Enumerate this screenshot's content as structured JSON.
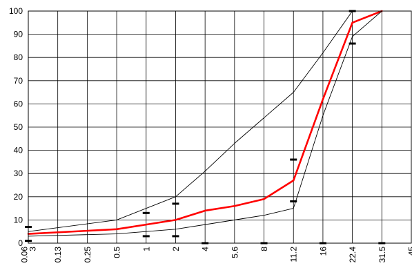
{
  "chart_data": {
    "type": "line",
    "title": "",
    "xlabel": "",
    "ylabel": "",
    "x_scale": "categorical",
    "categories": [
      "0.063",
      "0.13",
      "0.25",
      "0.5",
      "1",
      "2",
      "4",
      "5.6",
      "8",
      "11.2",
      "16",
      "22.4",
      "31.5",
      "45"
    ],
    "x_tick_labels": [
      "0.06\n3",
      "0.13",
      "0.25",
      "0.5",
      "1",
      "2",
      "4",
      "5.6",
      "8",
      "11.2",
      "16",
      "22.4",
      "31.5",
      "45"
    ],
    "ylim": [
      0,
      100
    ],
    "y_ticks": [
      0,
      10,
      20,
      30,
      40,
      50,
      60,
      70,
      80,
      90,
      100
    ],
    "grid": true,
    "series": [
      {
        "color": "#ff0000",
        "style": "thick",
        "x": [
          "0.063",
          "0.5",
          "1",
          "2",
          "4",
          "5.6",
          "8",
          "11.2",
          "16",
          "22.4",
          "31.5"
        ],
        "values": [
          4,
          6,
          8,
          10,
          14,
          16,
          19,
          27,
          62,
          95,
          100
        ]
      },
      {
        "color": "#000000",
        "style": "thin",
        "x": [
          "0.063",
          "0.5",
          "2",
          "4",
          "5.6",
          "8",
          "11.2",
          "16",
          "22.4",
          "31.5"
        ],
        "values": [
          5,
          10,
          20,
          31,
          43,
          54,
          65,
          82,
          100,
          100
        ]
      },
      {
        "color": "#000000",
        "style": "thin",
        "x": [
          "0.063",
          "0.5",
          "2",
          "4",
          "8",
          "11.2",
          "16",
          "22.4",
          "31.5"
        ],
        "values": [
          3,
          4,
          6,
          8,
          12,
          15,
          55,
          89,
          100
        ]
      }
    ],
    "markers": {
      "color": "#000000",
      "shape": "dash",
      "points": [
        {
          "x": "0.063",
          "y": 7
        },
        {
          "x": "0.063",
          "y": 1
        },
        {
          "x": "1",
          "y": 13
        },
        {
          "x": "1",
          "y": 3
        },
        {
          "x": "2",
          "y": 17
        },
        {
          "x": "2",
          "y": 3
        },
        {
          "x": "4",
          "y": 0
        },
        {
          "x": "8",
          "y": 0
        },
        {
          "x": "11.2",
          "y": 36
        },
        {
          "x": "11.2",
          "y": 18
        },
        {
          "x": "16",
          "y": 0
        },
        {
          "x": "22.4",
          "y": 100
        },
        {
          "x": "22.4",
          "y": 86
        },
        {
          "x": "31.5",
          "y": 0
        }
      ]
    }
  }
}
